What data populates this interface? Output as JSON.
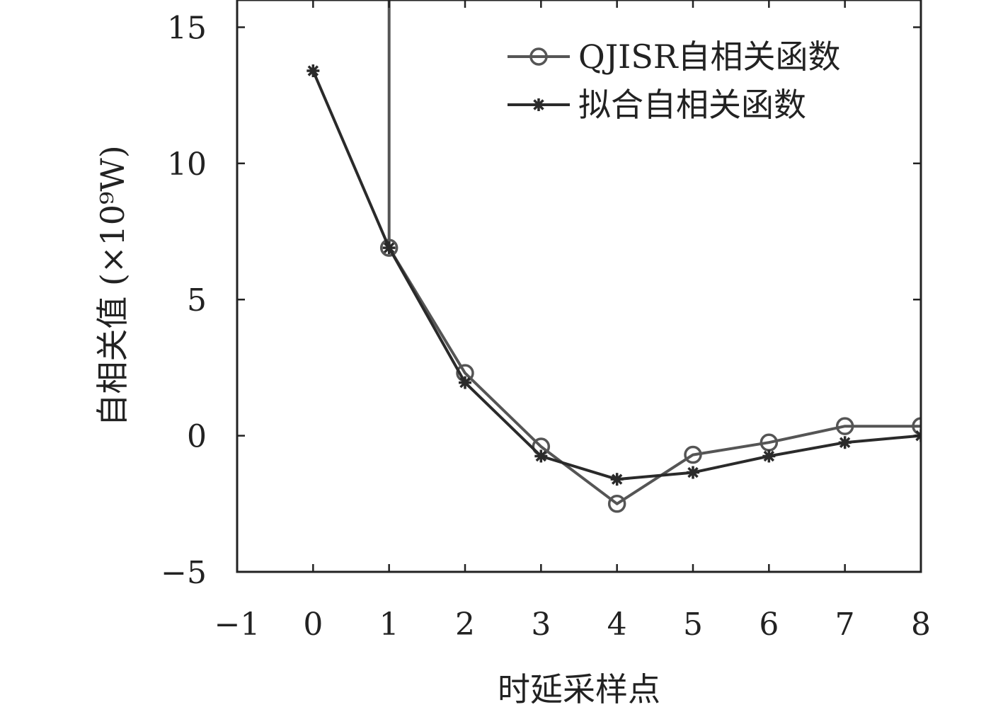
{
  "chart_data": {
    "type": "line",
    "xlabel": "时延采样点",
    "ylabel": "自相关值 (×10⁹W)",
    "xlim": [
      -1,
      8
    ],
    "ylim": [
      -5,
      16
    ],
    "xticks": [
      -1,
      0,
      1,
      2,
      3,
      4,
      5,
      6,
      7,
      8
    ],
    "yticks": [
      -5,
      0,
      5,
      10,
      15
    ],
    "xtick_labels": [
      "−1",
      "0",
      "1",
      "2",
      "3",
      "4",
      "5",
      "6",
      "7",
      "8"
    ],
    "ytick_labels": [
      "−5",
      "0",
      "5",
      "10",
      "15"
    ],
    "grid": false,
    "legend_position": "top-right",
    "series": [
      {
        "name": "QJISR自相关函数",
        "marker": "circle",
        "color": "#555555",
        "x": [
          1,
          1,
          2,
          3,
          4,
          5,
          6,
          7,
          8
        ],
        "y": [
          16,
          6.9,
          2.3,
          -0.4,
          -2.5,
          -0.7,
          -0.25,
          0.35,
          0.35
        ],
        "marker_from_index": 1
      },
      {
        "name": "拟合自相关函数",
        "marker": "star",
        "color": "#2a2a2a",
        "x": [
          0,
          1,
          2,
          3,
          4,
          5,
          6,
          7,
          8
        ],
        "y": [
          13.4,
          6.9,
          1.95,
          -0.75,
          -1.6,
          -1.35,
          -0.75,
          -0.25,
          0.0
        ],
        "marker_from_index": 0
      }
    ]
  }
}
